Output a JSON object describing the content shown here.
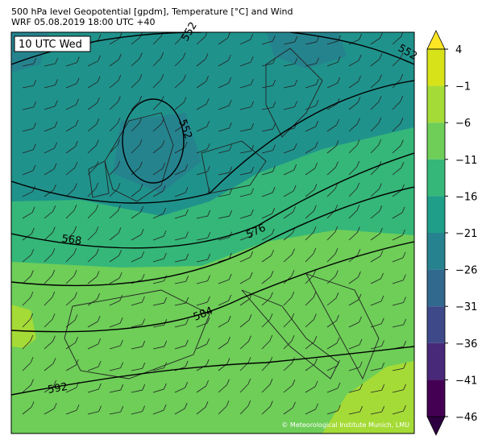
{
  "header": {
    "title": "500 hPa level Geopotential [gpdm], Temperature [°C] and Wind",
    "subtitle": "WRF 05.08.2019 18:00 UTC +40"
  },
  "map": {
    "time_label": "10 UTC Wed",
    "contour_labels": [
      "552",
      "552",
      "552",
      "568",
      "576",
      "584",
      "592"
    ],
    "credit": "© Meteorological Institute Munich, LMU"
  },
  "colorbar": {
    "ticks": [
      4,
      {
        "value": -1,
        "label": "−1"
      },
      {
        "value": -6,
        "label": "−6"
      },
      {
        "value": -11,
        "label": "−11"
      },
      {
        "value": -16,
        "label": "−16"
      },
      {
        "value": -21,
        "label": "−21"
      },
      {
        "value": -26,
        "label": "−26"
      },
      {
        "value": -31,
        "label": "−31"
      },
      {
        "value": -36,
        "label": "−36"
      },
      {
        "value": -41,
        "label": "−41"
      },
      {
        "value": -46,
        "label": "−46"
      }
    ],
    "colors": [
      "#fde725",
      "#d8e219",
      "#a5db36",
      "#6ece58",
      "#35b779",
      "#1f9e89",
      "#26828e",
      "#31688e",
      "#3e4989",
      "#482878",
      "#440154",
      "#2d0040"
    ]
  }
}
